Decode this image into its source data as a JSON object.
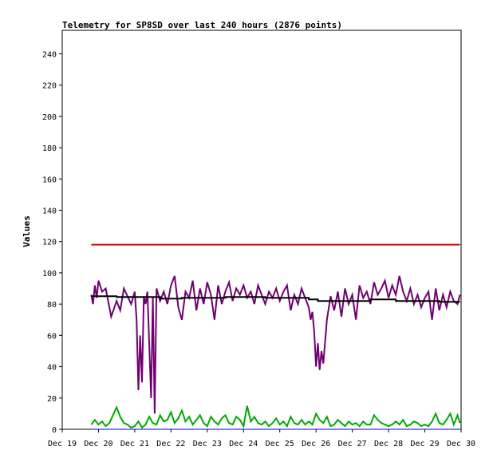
{
  "chart_data": {
    "type": "line",
    "title": "Telemetry for SP8SD over last 240 hours (2876 points)",
    "xlabel": "",
    "ylabel": "Values",
    "xlim": [
      0,
      11
    ],
    "ylim": [
      0,
      255
    ],
    "grid": false,
    "legend": "none",
    "x_ticks": [
      {
        "x": 0,
        "label": "Dec 19"
      },
      {
        "x": 1,
        "label": "Dec 20"
      },
      {
        "x": 2,
        "label": "Dec 21"
      },
      {
        "x": 3,
        "label": "Dec 22"
      },
      {
        "x": 4,
        "label": "Dec 23"
      },
      {
        "x": 5,
        "label": "Dec 24"
      },
      {
        "x": 6,
        "label": "Dec 25"
      },
      {
        "x": 7,
        "label": "Dec 26"
      },
      {
        "x": 8,
        "label": "Dec 27"
      },
      {
        "x": 9,
        "label": "Dec 28"
      },
      {
        "x": 10,
        "label": "Dec 29"
      },
      {
        "x": 11,
        "label": "Dec 30"
      }
    ],
    "y_ticks": [
      0,
      20,
      40,
      60,
      80,
      100,
      120,
      140,
      160,
      180,
      200,
      220,
      240
    ],
    "series": [
      {
        "color": "#dd0000",
        "x": [
          0.8,
          10.97
        ],
        "y": [
          118,
          118
        ]
      },
      {
        "color": "#700070",
        "x": [
          0.8,
          0.85,
          0.9,
          0.95,
          1.0,
          1.1,
          1.2,
          1.35,
          1.5,
          1.6,
          1.7,
          1.8,
          1.9,
          2.0,
          2.05,
          2.1,
          2.15,
          2.2,
          2.25,
          2.3,
          2.35,
          2.45,
          2.5,
          2.55,
          2.6,
          2.7,
          2.8,
          2.9,
          3.0,
          3.1,
          3.2,
          3.3,
          3.4,
          3.5,
          3.6,
          3.7,
          3.8,
          3.9,
          4.0,
          4.1,
          4.2,
          4.3,
          4.4,
          4.5,
          4.6,
          4.7,
          4.8,
          4.9,
          5.0,
          5.1,
          5.2,
          5.3,
          5.4,
          5.5,
          5.6,
          5.7,
          5.8,
          5.9,
          6.0,
          6.1,
          6.2,
          6.3,
          6.4,
          6.5,
          6.6,
          6.7,
          6.8,
          6.85,
          6.9,
          6.95,
          7.0,
          7.05,
          7.1,
          7.15,
          7.2,
          7.3,
          7.4,
          7.5,
          7.6,
          7.7,
          7.8,
          7.9,
          8.0,
          8.1,
          8.2,
          8.3,
          8.4,
          8.5,
          8.6,
          8.7,
          8.8,
          8.9,
          9.0,
          9.1,
          9.2,
          9.3,
          9.4,
          9.5,
          9.6,
          9.7,
          9.8,
          9.9,
          10.0,
          10.1,
          10.2,
          10.3,
          10.4,
          10.5,
          10.6,
          10.7,
          10.8,
          10.9,
          10.97
        ],
        "y": [
          86,
          80,
          92,
          84,
          95,
          88,
          90,
          72,
          82,
          76,
          90,
          85,
          80,
          88,
          70,
          25,
          60,
          30,
          85,
          80,
          88,
          20,
          84,
          10,
          90,
          82,
          88,
          80,
          92,
          98,
          78,
          70,
          88,
          84,
          95,
          76,
          90,
          80,
          94,
          86,
          70,
          92,
          80,
          88,
          94,
          82,
          90,
          86,
          92,
          84,
          88,
          80,
          92,
          86,
          80,
          88,
          84,
          90,
          82,
          88,
          92,
          76,
          86,
          80,
          90,
          84,
          78,
          70,
          75,
          62,
          40,
          55,
          38,
          50,
          42,
          70,
          85,
          76,
          88,
          72,
          90,
          80,
          86,
          70,
          92,
          84,
          88,
          80,
          94,
          86,
          90,
          95,
          84,
          92,
          86,
          98,
          88,
          82,
          90,
          80,
          86,
          78,
          84,
          88,
          70,
          90,
          76,
          86,
          78,
          88,
          82,
          80,
          86
        ],
        "width": 2
      },
      {
        "color": "#000000",
        "x": [
          0.8,
          1.5,
          1.5,
          2.7,
          2.7,
          3.3,
          3.3,
          4.5,
          4.5,
          5.6,
          5.6,
          6.8,
          6.8,
          7.05,
          7.05,
          8.5,
          8.5,
          9.2,
          9.2,
          10.4,
          10.4,
          10.97
        ],
        "y": [
          85,
          85,
          84.5,
          84.5,
          83.5,
          83.5,
          84,
          84,
          84.5,
          84.5,
          84,
          84,
          83,
          83,
          82,
          82,
          83,
          83,
          82,
          82,
          81.5,
          81.5
        ],
        "width": 2
      },
      {
        "color": "#00aa00",
        "x": [
          0.8,
          0.9,
          1.0,
          1.1,
          1.2,
          1.3,
          1.4,
          1.5,
          1.6,
          1.7,
          1.8,
          1.9,
          2.0,
          2.1,
          2.2,
          2.3,
          2.4,
          2.5,
          2.6,
          2.7,
          2.8,
          2.9,
          3.0,
          3.1,
          3.2,
          3.3,
          3.4,
          3.5,
          3.6,
          3.7,
          3.8,
          3.9,
          4.0,
          4.1,
          4.2,
          4.3,
          4.4,
          4.5,
          4.6,
          4.7,
          4.8,
          4.9,
          5.0,
          5.1,
          5.2,
          5.3,
          5.4,
          5.5,
          5.6,
          5.7,
          5.8,
          5.9,
          6.0,
          6.1,
          6.2,
          6.3,
          6.4,
          6.5,
          6.6,
          6.7,
          6.8,
          6.9,
          7.0,
          7.1,
          7.2,
          7.3,
          7.4,
          7.5,
          7.6,
          7.7,
          7.8,
          7.9,
          8.0,
          8.1,
          8.2,
          8.3,
          8.4,
          8.5,
          8.6,
          8.7,
          8.8,
          8.9,
          9.0,
          9.1,
          9.2,
          9.3,
          9.4,
          9.5,
          9.6,
          9.7,
          9.8,
          9.9,
          10.0,
          10.1,
          10.2,
          10.3,
          10.4,
          10.5,
          10.6,
          10.7,
          10.8,
          10.9,
          10.97
        ],
        "y": [
          3,
          6,
          3,
          5,
          2,
          4,
          9,
          14,
          8,
          4,
          3,
          1,
          2,
          5,
          1,
          3,
          8,
          4,
          3,
          9,
          5,
          6,
          11,
          4,
          7,
          12,
          5,
          8,
          3,
          6,
          9,
          4,
          2,
          8,
          5,
          3,
          7,
          9,
          4,
          3,
          8,
          6,
          2,
          15,
          5,
          8,
          4,
          3,
          5,
          2,
          4,
          7,
          3,
          5,
          2,
          8,
          4,
          3,
          6,
          3,
          5,
          3,
          10,
          6,
          4,
          8,
          2,
          3,
          6,
          4,
          2,
          5,
          3,
          4,
          2,
          5,
          3,
          3,
          9,
          6,
          4,
          3,
          2,
          3,
          5,
          3,
          6,
          2,
          3,
          5,
          4,
          2,
          3,
          2,
          5,
          10,
          4,
          3,
          6,
          10,
          3,
          9,
          4
        ],
        "width": 2
      },
      {
        "color": "#0000cc",
        "x": [
          0.8,
          10.97
        ],
        "y": [
          0,
          0
        ],
        "width": 1
      }
    ]
  }
}
